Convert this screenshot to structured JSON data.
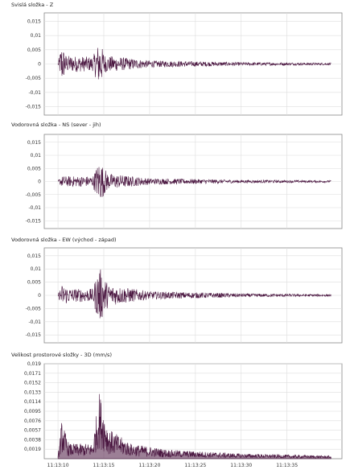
{
  "chart_data": [
    {
      "type": "line",
      "title": "Svislá složka - Z",
      "ylim": [
        -0.018,
        0.018
      ],
      "yticks": [
        "0,015",
        "0,01",
        "0,005",
        "0",
        "-0,005",
        "-0,01",
        "-0,015"
      ],
      "ytick_values": [
        0.015,
        0.01,
        0.005,
        0,
        -0.005,
        -0.01,
        -0.015
      ],
      "grid": true,
      "series": [
        {
          "color": "#4a1640",
          "envelope": [
            {
              "t": 0.0,
              "amp": 0.0005
            },
            {
              "t": 0.4,
              "amp": 0.007
            },
            {
              "t": 0.9,
              "amp": 0.003
            },
            {
              "t": 3.8,
              "amp": 0.0025
            },
            {
              "t": 4.5,
              "amp": 0.008
            },
            {
              "t": 5.2,
              "amp": 0.003
            },
            {
              "t": 10.0,
              "amp": 0.0012
            },
            {
              "t": 20.0,
              "amp": 0.0006
            },
            {
              "t": 29.5,
              "amp": 0.0004
            }
          ]
        }
      ]
    },
    {
      "type": "line",
      "title": "Vodorovná složka - NS (sever - jih)",
      "ylim": [
        -0.018,
        0.018
      ],
      "yticks": [
        "0,015",
        "0,01",
        "0,005",
        "0",
        "-0,005",
        "-0,01",
        "-0,015"
      ],
      "ytick_values": [
        0.015,
        0.01,
        0.005,
        0,
        -0.005,
        -0.01,
        -0.015
      ],
      "grid": true,
      "series": [
        {
          "color": "#4a1640",
          "envelope": [
            {
              "t": 0.0,
              "amp": 0.0004
            },
            {
              "t": 0.4,
              "amp": 0.002
            },
            {
              "t": 3.8,
              "amp": 0.002
            },
            {
              "t": 4.5,
              "amp": 0.008
            },
            {
              "t": 5.5,
              "amp": 0.003
            },
            {
              "t": 10.0,
              "amp": 0.0012
            },
            {
              "t": 20.0,
              "amp": 0.0006
            },
            {
              "t": 29.5,
              "amp": 0.0004
            }
          ]
        }
      ]
    },
    {
      "type": "line",
      "title": "Vodorovná složka - EW (východ - západ)",
      "ylim": [
        -0.018,
        0.018
      ],
      "yticks": [
        "0,015",
        "0,01",
        "0,005",
        "0",
        "-0,005",
        "-0,01",
        "-0,015"
      ],
      "ytick_values": [
        0.015,
        0.01,
        0.005,
        0,
        -0.005,
        -0.01,
        -0.015
      ],
      "grid": true,
      "series": [
        {
          "color": "#4a1640",
          "envelope": [
            {
              "t": 0.0,
              "amp": 0.0005
            },
            {
              "t": 0.4,
              "amp": 0.004
            },
            {
              "t": 1.5,
              "amp": 0.0025
            },
            {
              "t": 3.8,
              "amp": 0.0025
            },
            {
              "t": 4.5,
              "amp": 0.011
            },
            {
              "t": 5.5,
              "amp": 0.004
            },
            {
              "t": 10.0,
              "amp": 0.0015
            },
            {
              "t": 20.0,
              "amp": 0.0007
            },
            {
              "t": 29.5,
              "amp": 0.0004
            }
          ]
        }
      ]
    },
    {
      "type": "area",
      "title": "Velikost prostorové složky - 3D (mm/s)",
      "ylim": [
        0,
        0.019
      ],
      "yticks": [
        "0,019",
        "0,0171",
        "0,0152",
        "0,0133",
        "0,0114",
        "0,0095",
        "0,0076",
        "0,0057",
        "0,0038",
        "0,0019"
      ],
      "ytick_values": [
        0.019,
        0.0171,
        0.0152,
        0.0133,
        0.0114,
        0.0095,
        0.0076,
        0.0057,
        0.0038,
        0.0019
      ],
      "xticks": [
        "11:13:10",
        "11:13:15",
        "11:13:20",
        "11:13:25",
        "11:13:30",
        "11:13:35"
      ],
      "grid": true,
      "series": [
        {
          "color": "#4a1640",
          "envelope": [
            {
              "t": 0.0,
              "amp": 0.0005
            },
            {
              "t": 0.4,
              "amp": 0.0075
            },
            {
              "t": 1.2,
              "amp": 0.003
            },
            {
              "t": 3.8,
              "amp": 0.003
            },
            {
              "t": 4.5,
              "amp": 0.0135
            },
            {
              "t": 5.5,
              "amp": 0.006
            },
            {
              "t": 8.0,
              "amp": 0.003
            },
            {
              "t": 12.0,
              "amp": 0.0018
            },
            {
              "t": 20.0,
              "amp": 0.001
            },
            {
              "t": 29.5,
              "amp": 0.0006
            }
          ]
        }
      ]
    }
  ]
}
